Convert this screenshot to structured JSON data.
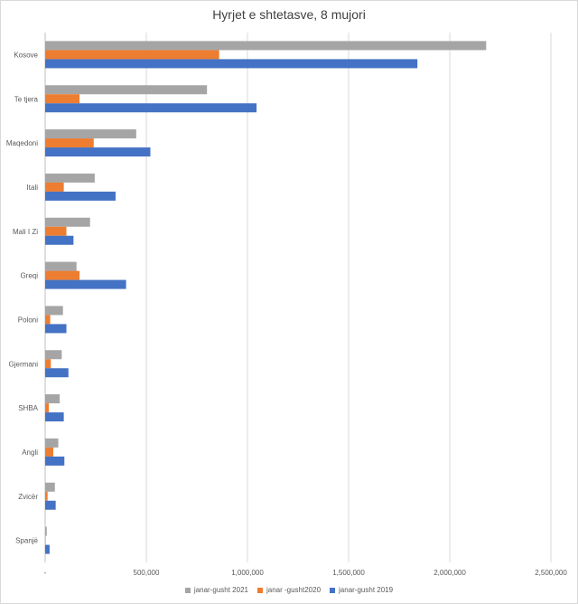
{
  "chart_data": {
    "type": "bar",
    "orientation": "horizontal",
    "title": "Hyrjet e shtetasve, 8 mujori",
    "categories": [
      "Kosove",
      "Te tjera",
      "Maqedoni",
      "Itali",
      "Mali I Zi",
      "Greqi",
      "Poloni",
      "Gjermani",
      "SHBA",
      "Angli",
      "Zvicër",
      "Spanjë"
    ],
    "series": [
      {
        "name": "janar-gusht 2021",
        "color": "#a5a5a5",
        "values": [
          2180000,
          800000,
          450000,
          245000,
          222000,
          155000,
          88000,
          82000,
          72000,
          65000,
          48000,
          8000
        ]
      },
      {
        "name": "janar -gusht2020",
        "color": "#ed7d31",
        "values": [
          860000,
          170000,
          240000,
          92000,
          105000,
          170000,
          25000,
          28000,
          18000,
          40000,
          12000,
          2000
        ]
      },
      {
        "name": "janar-gusht 2019",
        "color": "#4472c4",
        "values": [
          1840000,
          1045000,
          520000,
          348000,
          140000,
          400000,
          105000,
          115000,
          92000,
          95000,
          52000,
          22000
        ]
      }
    ],
    "xlim": [
      0,
      2500000
    ],
    "x_ticks": [
      "-",
      "500,000",
      "1,000,000",
      "1,500,000",
      "2,000,000",
      "2,500,000"
    ],
    "grid": true,
    "legend_position": "bottom"
  }
}
